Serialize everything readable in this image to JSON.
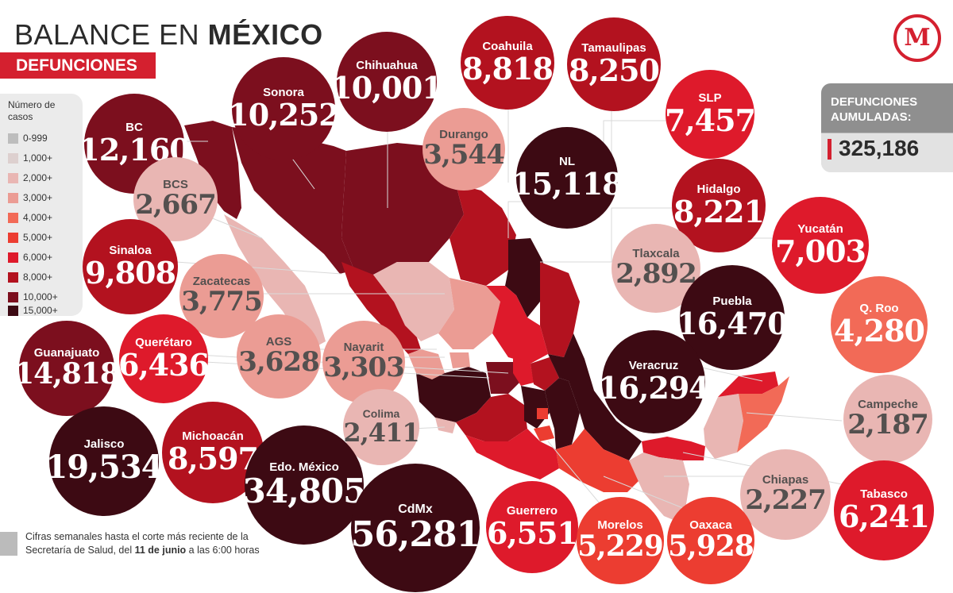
{
  "title": {
    "prefix": "BALANCE EN ",
    "bold": "MÉXICO"
  },
  "subtitle": "DEFUNCIONES",
  "legend": {
    "title": "Número de casos",
    "items": [
      {
        "label": "0-999",
        "color": "#bdbdbd"
      },
      {
        "label": "1,000+",
        "color": "#ddd0cf"
      },
      {
        "label": "2,000+",
        "color": "#e9b6b3"
      },
      {
        "label": "3,000+",
        "color": "#eb9c94"
      },
      {
        "label": "4,000+",
        "color": "#f26a57"
      },
      {
        "label": "5,000+",
        "color": "#ec3d31"
      },
      {
        "label": "6,000+",
        "color": "#de1a2b"
      },
      {
        "label": "8,000+",
        "color": "#b3121f"
      },
      {
        "label": "10,000+",
        "color": "#7c0f1e"
      },
      {
        "label": "15,000+",
        "color": "#3d0a13"
      }
    ]
  },
  "cumulative": {
    "label_line1": "DEFUNCIONES",
    "label_line2": "AUMULADAS:",
    "value": "325,186"
  },
  "logo": {
    "letter": "M"
  },
  "note": {
    "line1": "Cifras semanales hasta el corte más reciente de la",
    "line2_prefix": "Secretaría de Salud, del ",
    "line2_bold": "11 de junio",
    "line2_suffix": " a las 6:00 horas"
  },
  "states": [
    {
      "name": "BC",
      "value": "12,160",
      "color": "#7c0f1e"
    },
    {
      "name": "Sonora",
      "value": "10,252",
      "color": "#7c0f1e"
    },
    {
      "name": "Chihuahua",
      "value": "10,001",
      "color": "#7c0f1e"
    },
    {
      "name": "Coahuila",
      "value": "8,818",
      "color": "#b3121f"
    },
    {
      "name": "Tamaulipas",
      "value": "8,250",
      "color": "#b3121f"
    },
    {
      "name": "SLP",
      "value": "7,457",
      "color": "#de1a2b"
    },
    {
      "name": "Durango",
      "value": "3,544",
      "color": "#eb9c94"
    },
    {
      "name": "NL",
      "value": "15,118",
      "color": "#3d0a13"
    },
    {
      "name": "Hidalgo",
      "value": "8,221",
      "color": "#b3121f"
    },
    {
      "name": "BCS",
      "value": "2,667",
      "color": "#e9b6b3"
    },
    {
      "name": "Yucatán",
      "value": "7,003",
      "color": "#de1a2b"
    },
    {
      "name": "Tlaxcala",
      "value": "2,892",
      "color": "#e9b6b3"
    },
    {
      "name": "Sinaloa",
      "value": "9,808",
      "color": "#b3121f"
    },
    {
      "name": "Zacatecas",
      "value": "3,775",
      "color": "#eb9c94"
    },
    {
      "name": "Puebla",
      "value": "16,470",
      "color": "#3d0a13"
    },
    {
      "name": "Q. Roo",
      "value": "4,280",
      "color": "#f26a57"
    },
    {
      "name": "Guanajuato",
      "value": "14,818",
      "color": "#7c0f1e"
    },
    {
      "name": "Querétaro",
      "value": "6,436",
      "color": "#de1a2b"
    },
    {
      "name": "AGS",
      "value": "3,628",
      "color": "#eb9c94"
    },
    {
      "name": "Nayarit",
      "value": "3,303",
      "color": "#eb9c94"
    },
    {
      "name": "Veracruz",
      "value": "16,294",
      "color": "#3d0a13"
    },
    {
      "name": "Campeche",
      "value": "2,187",
      "color": "#e9b6b3"
    },
    {
      "name": "Jalisco",
      "value": "19,534",
      "color": "#3d0a13"
    },
    {
      "name": "Michoacán",
      "value": "8,597",
      "color": "#b3121f"
    },
    {
      "name": "Colima",
      "value": "2,411",
      "color": "#e9b6b3"
    },
    {
      "name": "Edo. México",
      "value": "34,805",
      "color": "#3d0a13"
    },
    {
      "name": "CdMx",
      "value": "56,281",
      "color": "#3d0a13"
    },
    {
      "name": "Chiapas",
      "value": "2,227",
      "color": "#e9b6b3"
    },
    {
      "name": "Guerrero",
      "value": "6,551",
      "color": "#de1a2b"
    },
    {
      "name": "Morelos",
      "value": "5,229",
      "color": "#ec3d31"
    },
    {
      "name": "Oaxaca",
      "value": "5,928",
      "color": "#ec3d31"
    },
    {
      "name": "Tabasco",
      "value": "6,241",
      "color": "#de1a2b"
    }
  ]
}
